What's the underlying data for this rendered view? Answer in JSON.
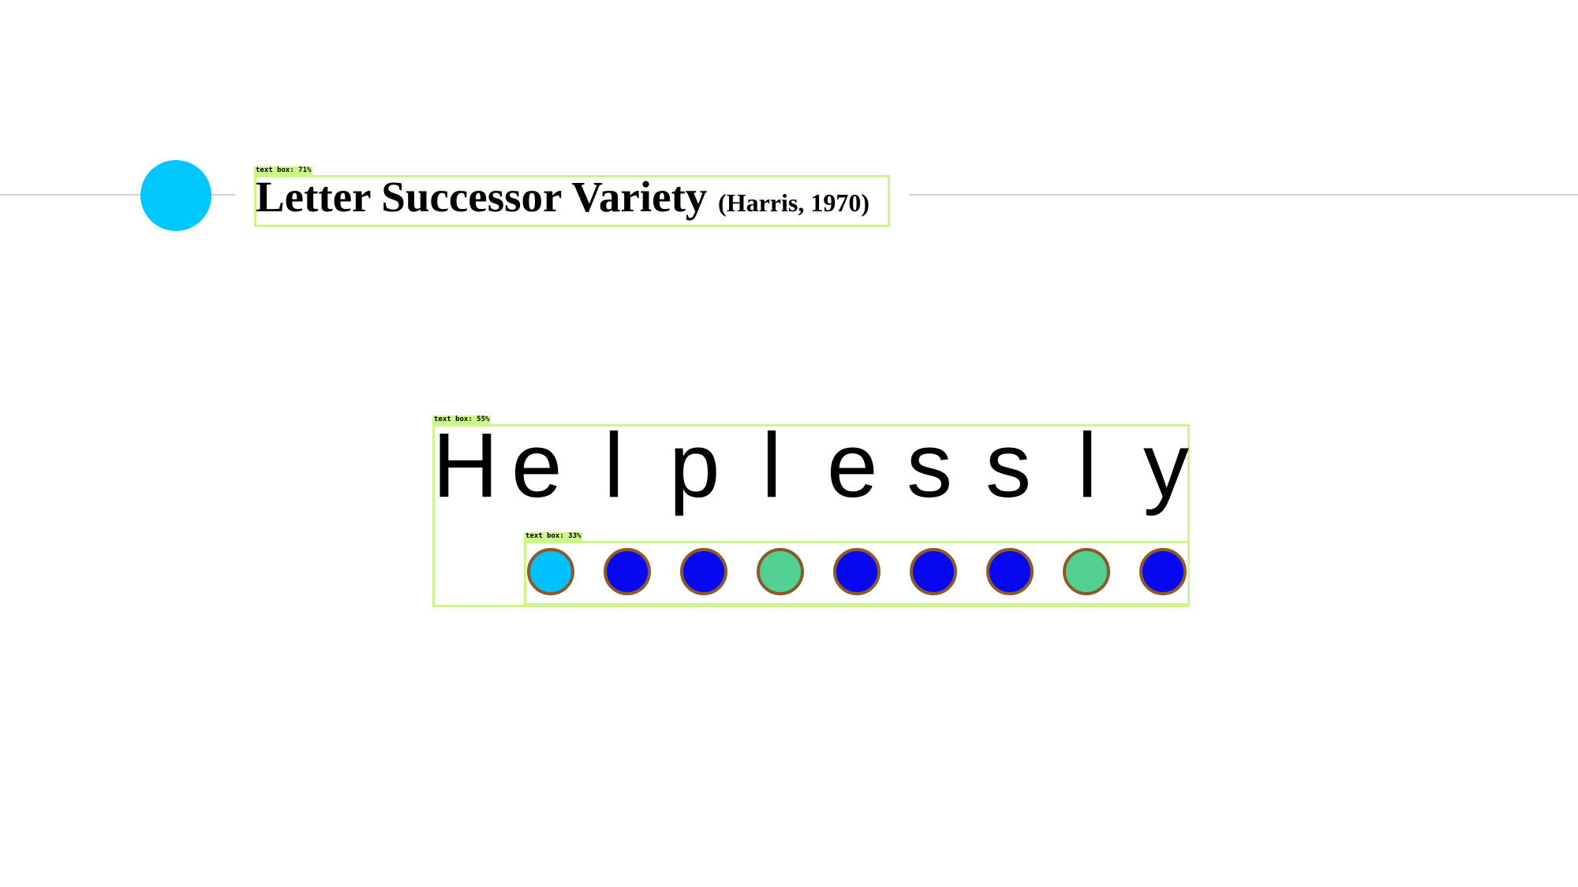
{
  "title": {
    "main": "Letter Successor Variety",
    "citation": "(Harris, 1970)"
  },
  "detections": {
    "title_box": "text box: 71%",
    "word_box": "text box: 55%",
    "dots_box": "text box: 33%"
  },
  "word": {
    "letters": [
      "H",
      "e",
      "l",
      "p",
      "l",
      "e",
      "s",
      "s",
      "l",
      "y"
    ]
  },
  "dots": {
    "items": [
      {
        "state": "light-blue"
      },
      {
        "state": "blue"
      },
      {
        "state": "blue"
      },
      {
        "state": "green"
      },
      {
        "state": "blue"
      },
      {
        "state": "blue"
      },
      {
        "state": "blue"
      },
      {
        "state": "green"
      },
      {
        "state": "blue"
      }
    ]
  },
  "colors": {
    "accent": "#00c8ff",
    "light-blue": "#00c0ff",
    "blue": "#0808f0",
    "green": "#52d092",
    "dot_border": "#8b5a2b",
    "detection_box": "#ccf58a"
  }
}
